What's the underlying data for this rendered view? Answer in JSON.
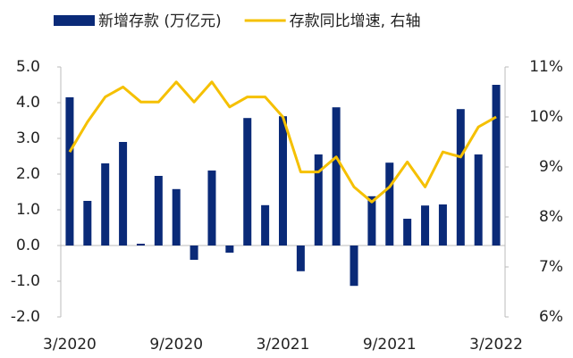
{
  "chart_data": {
    "type": "bar_line",
    "categories": [
      "3/2020",
      null,
      null,
      null,
      null,
      null,
      "9/2020",
      null,
      null,
      null,
      null,
      null,
      "3/2021",
      null,
      null,
      null,
      null,
      null,
      "9/2021",
      null,
      null,
      null,
      null,
      null,
      "3/2022"
    ],
    "series": [
      {
        "name": "新增存款 (万亿元)",
        "type": "bar",
        "color": "#0a2a78",
        "values": [
          4.15,
          1.25,
          2.3,
          2.9,
          0.05,
          1.95,
          1.58,
          -0.4,
          2.1,
          -0.2,
          3.57,
          1.13,
          3.62,
          -0.72,
          2.55,
          3.87,
          -1.13,
          1.38,
          2.32,
          0.75,
          1.12,
          1.15,
          3.82,
          2.55,
          4.5
        ]
      },
      {
        "name": "存款同比增速, 右轴",
        "type": "line",
        "axis": "y2",
        "color": "#f5c000",
        "values": [
          9.3,
          9.9,
          10.4,
          10.6,
          10.3,
          10.3,
          10.7,
          10.3,
          10.7,
          10.2,
          10.4,
          10.4,
          10.0,
          8.9,
          8.9,
          9.2,
          8.6,
          8.3,
          8.6,
          9.1,
          8.6,
          9.3,
          9.2,
          9.8,
          10.0
        ]
      }
    ],
    "ylim": [
      -2,
      5
    ],
    "yticks": [
      {
        "value": -2,
        "label": "-2.0"
      },
      {
        "value": -1,
        "label": "-1.0"
      },
      {
        "value": 0,
        "label": "0.0"
      },
      {
        "value": 1,
        "label": "1.0"
      },
      {
        "value": 2,
        "label": "2.0"
      },
      {
        "value": 3,
        "label": "3.0"
      },
      {
        "value": 4,
        "label": "4.0"
      },
      {
        "value": 5,
        "label": "5.0"
      }
    ],
    "y2lim": [
      6,
      11
    ],
    "y2ticks": [
      {
        "value": 6,
        "label": "6%"
      },
      {
        "value": 7,
        "label": "7%"
      },
      {
        "value": 8,
        "label": "8%"
      },
      {
        "value": 9,
        "label": "9%"
      },
      {
        "value": 10,
        "label": "10%"
      },
      {
        "value": 11,
        "label": "11%"
      }
    ],
    "legend": "top"
  }
}
